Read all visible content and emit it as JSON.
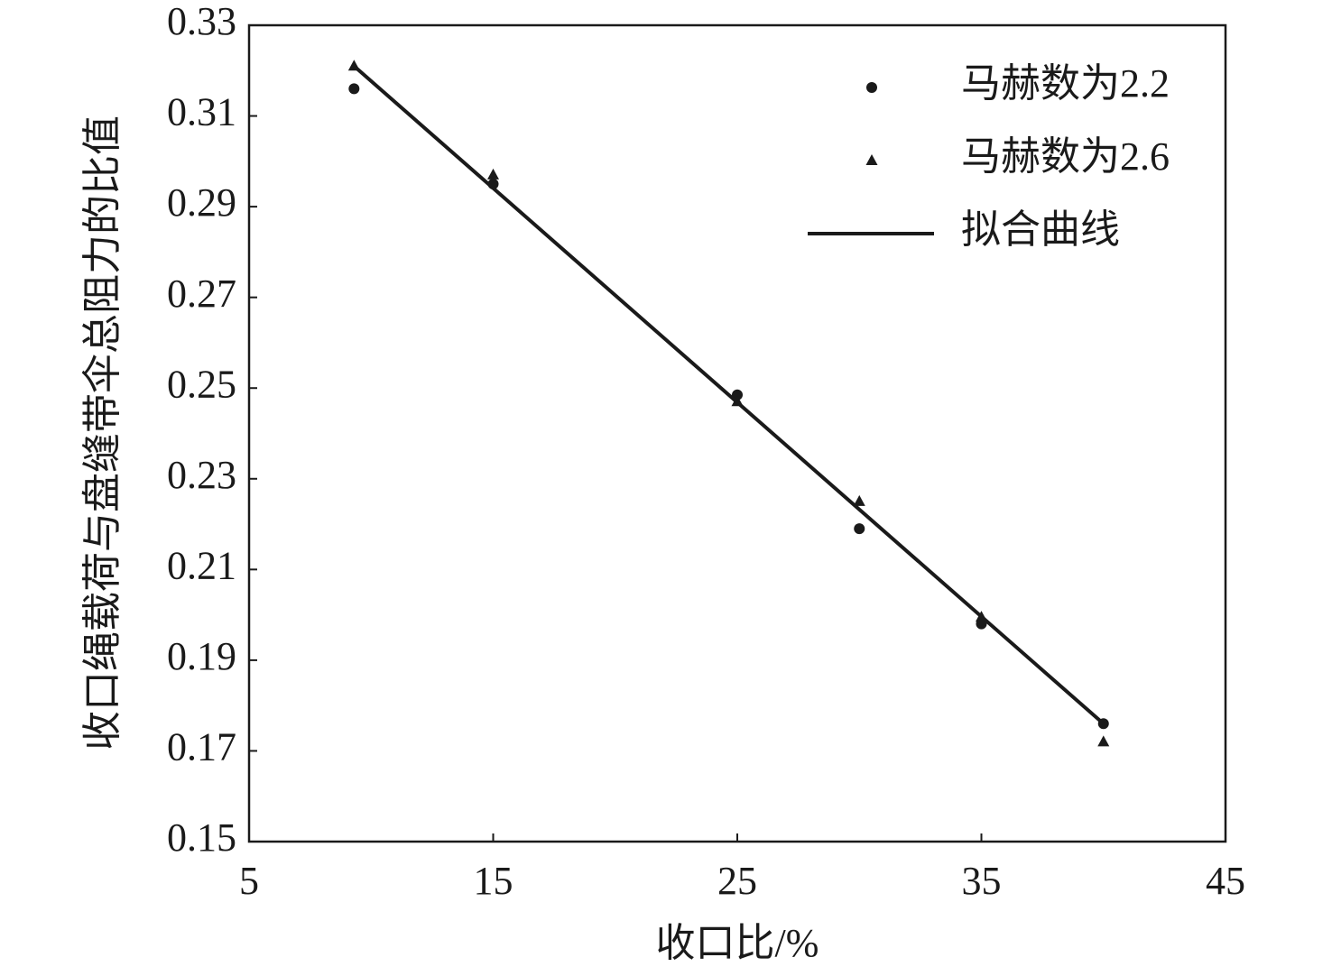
{
  "chart_data": {
    "type": "scatter",
    "xlabel": "收口比/%",
    "ylabel": "收口绳载荷与盘缝带伞总阻力的比值",
    "xlim": [
      5,
      45
    ],
    "xticks": [
      5,
      15,
      25,
      35,
      45
    ],
    "ylim": [
      0.15,
      0.33
    ],
    "yticks": [
      0.15,
      0.17,
      0.19,
      0.21,
      0.23,
      0.25,
      0.27,
      0.29,
      0.31,
      0.33
    ],
    "legend": "upper right",
    "series": [
      {
        "name": "马赫数为2.2",
        "type": "scatter",
        "marker": "circle",
        "color": "#1a1a1a",
        "x": [
          9.3,
          15,
          25,
          30,
          35,
          40
        ],
        "values": [
          0.316,
          0.295,
          0.2485,
          0.219,
          0.198,
          0.176
        ]
      },
      {
        "name": "马赫数为2.6",
        "type": "scatter",
        "marker": "triangle",
        "color": "#1a1a1a",
        "x": [
          9.3,
          15,
          25,
          30,
          35,
          40
        ],
        "values": [
          0.321,
          0.297,
          0.247,
          0.225,
          0.1995,
          0.172
        ]
      },
      {
        "name": "拟合曲线",
        "type": "line",
        "color": "#1a1a1a",
        "x": [
          9.3,
          40
        ],
        "values": [
          0.321,
          0.176
        ]
      }
    ]
  }
}
